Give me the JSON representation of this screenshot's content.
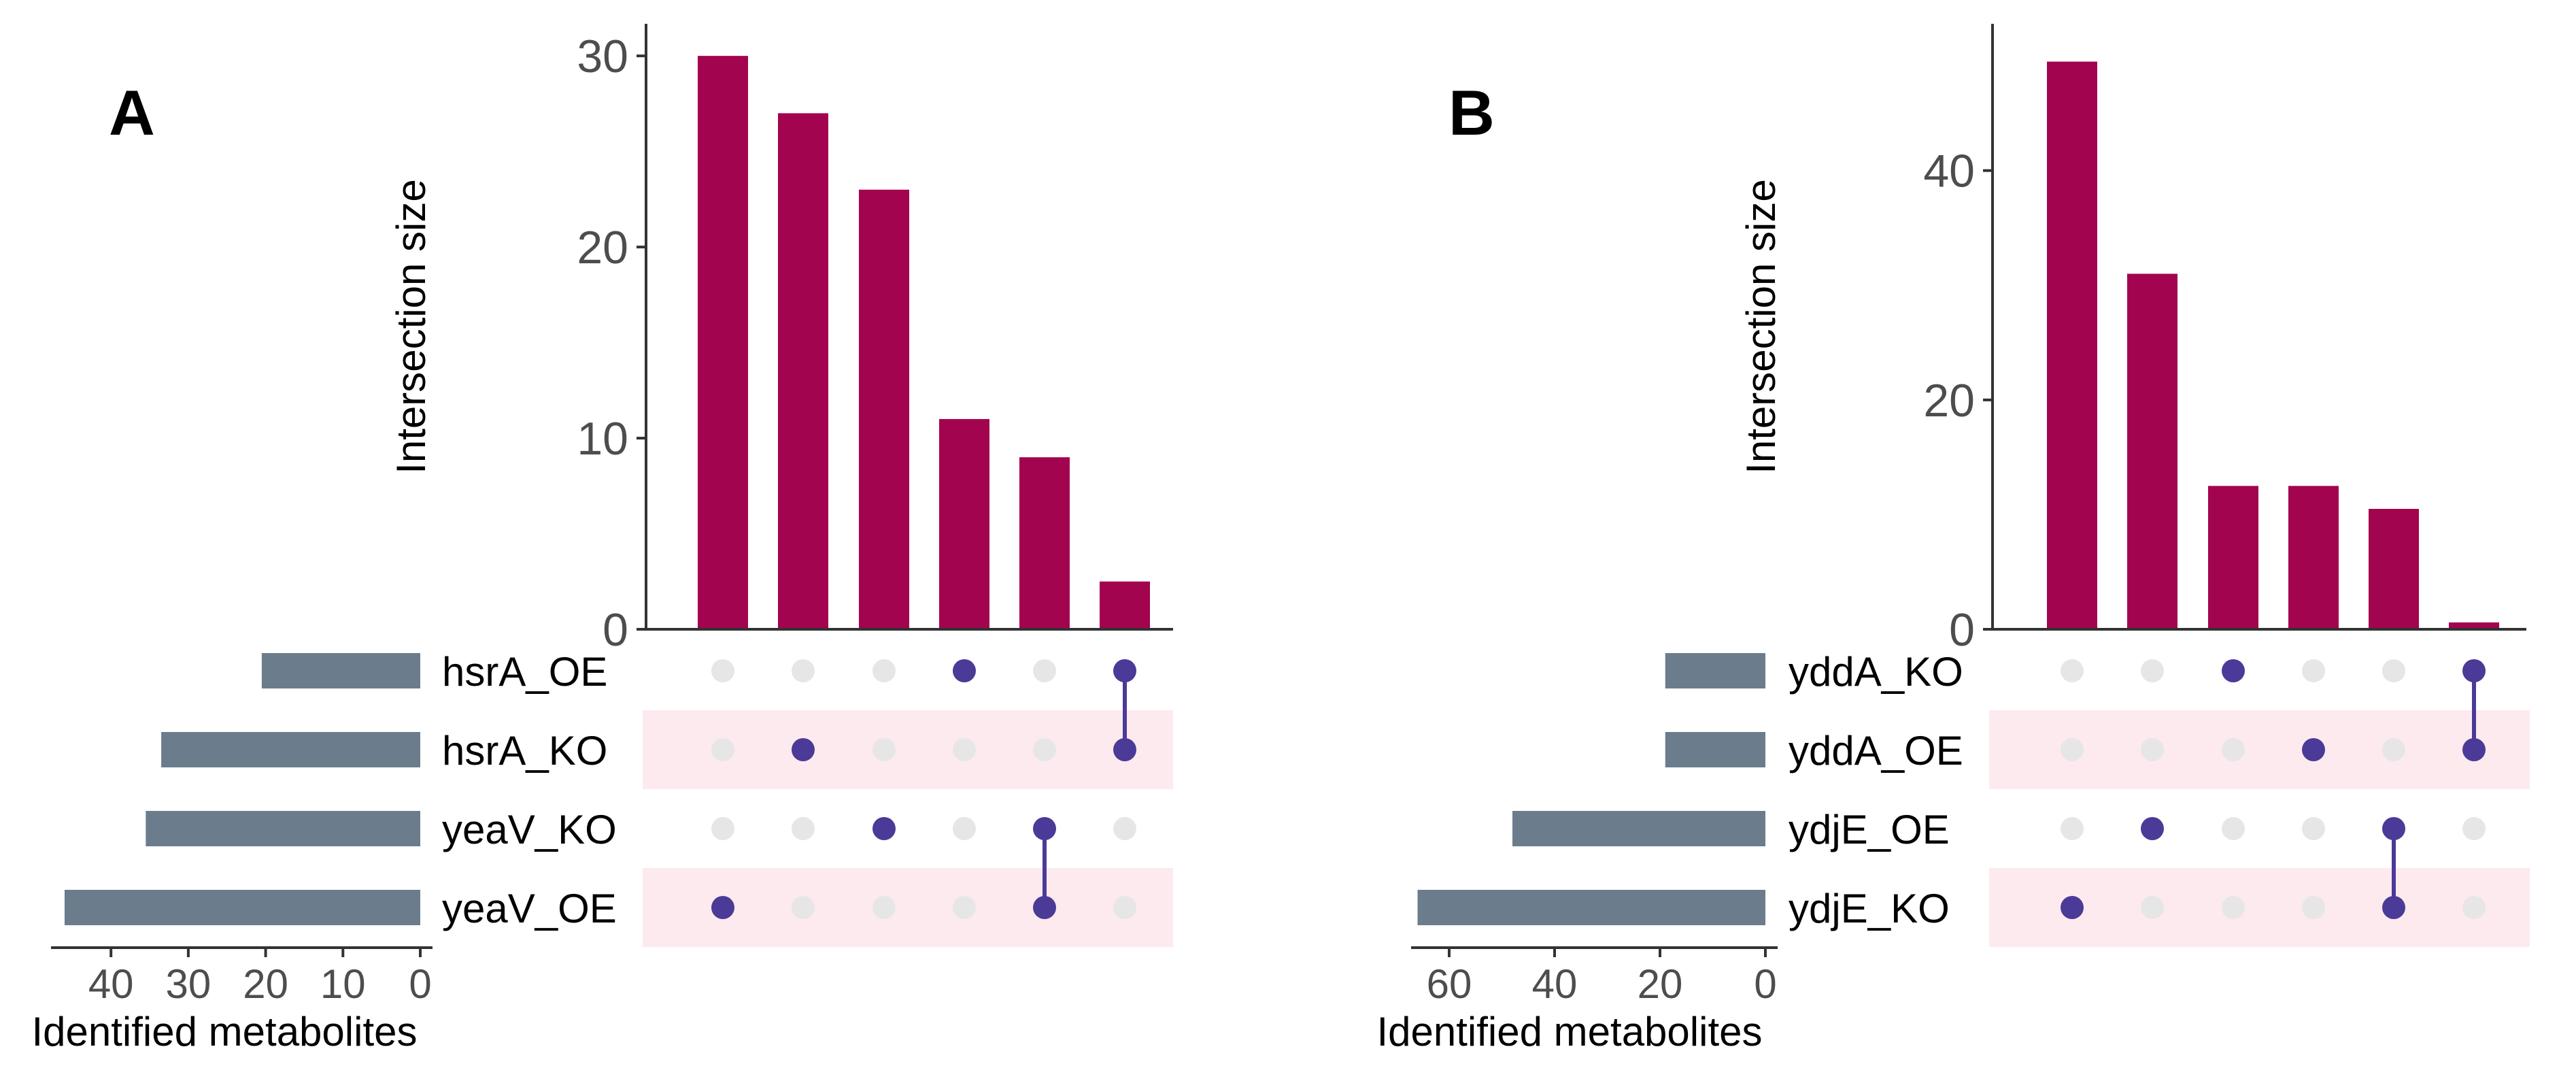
{
  "chart_data": [
    {
      "type": "upset",
      "panel_label": "A",
      "intersection_axis_label": "Intersection size",
      "intersection_ylim": [
        0,
        31.5
      ],
      "intersection_ticks": [
        0,
        10,
        20,
        30
      ],
      "intersection_values": [
        30,
        27,
        23,
        11,
        9,
        2.5
      ],
      "sets": [
        "hsrA_OE",
        "hsrA_KO",
        "yeaV_KO",
        "yeaV_OE"
      ],
      "set_sizes": [
        20.5,
        33.5,
        35.5,
        46
      ],
      "set_axis_label": "Identified metabolites",
      "set_xlim": [
        0,
        48
      ],
      "set_ticks": [
        40,
        30,
        20,
        10,
        0
      ],
      "intersections": [
        [
          3
        ],
        [
          1
        ],
        [
          2
        ],
        [
          0
        ],
        [
          2,
          3
        ],
        [
          0,
          1
        ]
      ],
      "bar_color": "#A3044F",
      "set_bar_color": "#6B7C8C",
      "dot_color": "#4B3A97"
    },
    {
      "type": "upset",
      "panel_label": "B",
      "intersection_axis_label": "Intersection size",
      "intersection_ylim": [
        0,
        52.5
      ],
      "intersection_ticks": [
        0,
        20,
        40
      ],
      "intersection_values": [
        49.5,
        31,
        12.5,
        12.5,
        10.5,
        0.6
      ],
      "sets": [
        "yddA_KO",
        "yddA_OE",
        "ydjE_OE",
        "ydjE_KO"
      ],
      "set_sizes": [
        19,
        19,
        48,
        66
      ],
      "set_axis_label": "Identified metabolites",
      "set_xlim": [
        0,
        68
      ],
      "set_ticks": [
        60,
        40,
        20,
        0
      ],
      "intersections": [
        [
          3
        ],
        [
          2
        ],
        [
          0
        ],
        [
          1
        ],
        [
          2,
          3
        ],
        [
          0,
          1
        ]
      ],
      "bar_color": "#A3044F",
      "set_bar_color": "#6B7C8C",
      "dot_color": "#4B3A97"
    }
  ],
  "colors": {
    "highlight_row": "#FDEAEE",
    "empty_dot": "#E6E6E6",
    "axis": "#333333",
    "tick_text": "#4D4D4D",
    "label_text": "#000000"
  }
}
